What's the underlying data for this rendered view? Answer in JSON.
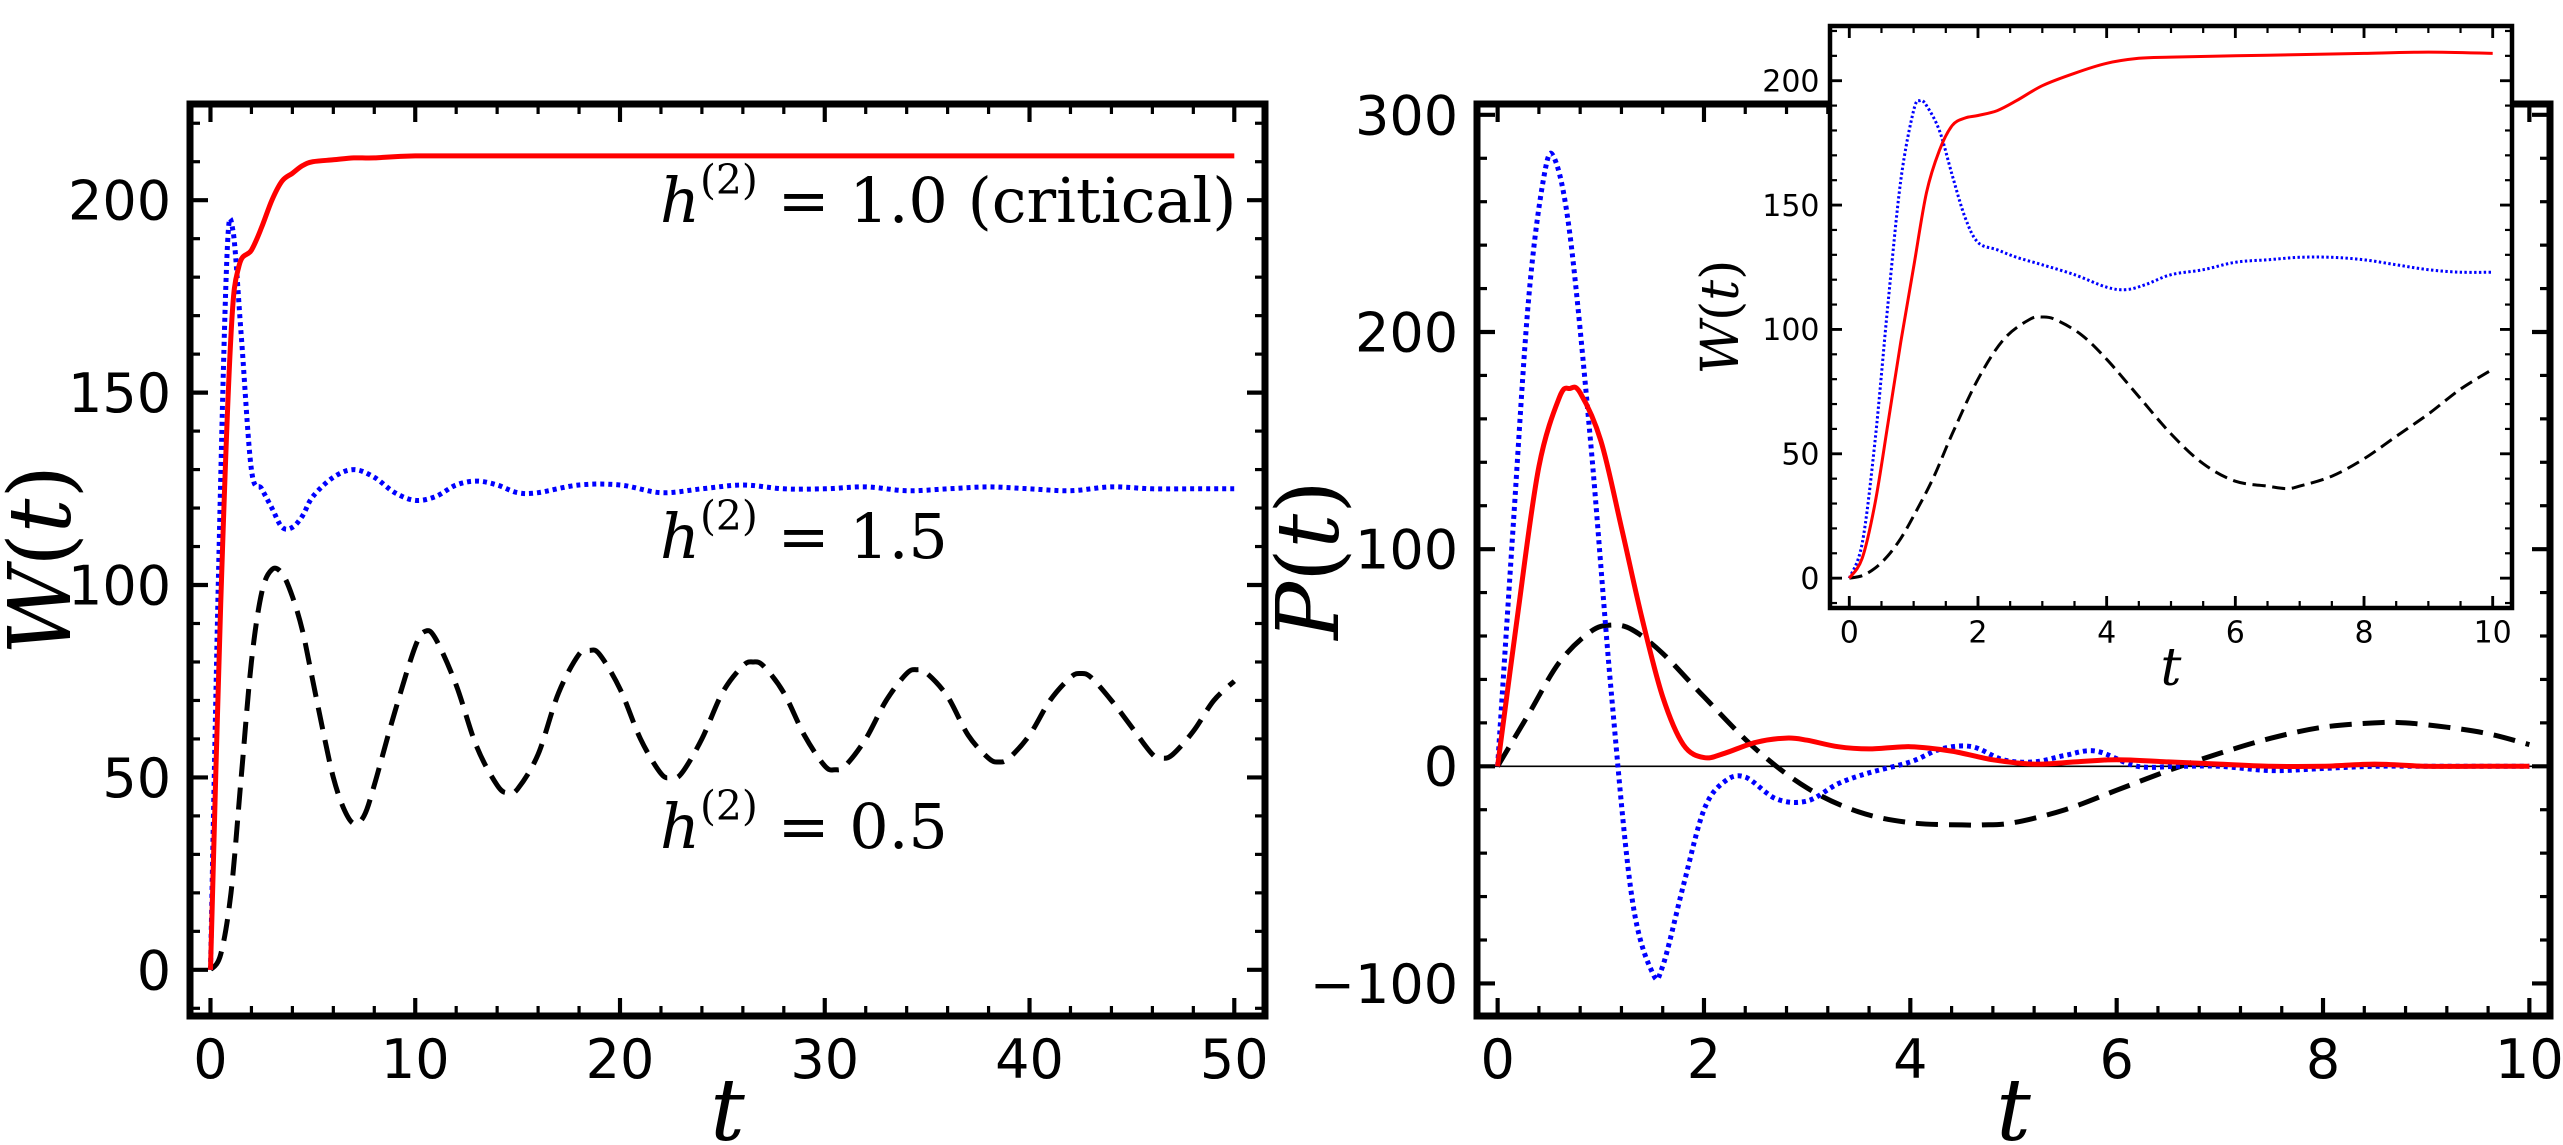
{
  "chart_data": [
    {
      "id": "left",
      "type": "line",
      "xlabel": "t",
      "ylabel": "W(t)",
      "xlim": [
        -1,
        51.5
      ],
      "ylim": [
        -12,
        225
      ],
      "xticks": [
        0,
        10,
        20,
        30,
        40,
        50
      ],
      "yticks": [
        0,
        50,
        100,
        150,
        200
      ],
      "annotations": [
        {
          "prefix": "h",
          "sup": "(2)",
          "text": " = 1.0 (critical)",
          "series": "h2=1.0"
        },
        {
          "prefix": "h",
          "sup": "(2)",
          "text": " = 1.5",
          "series": "h2=1.5"
        },
        {
          "prefix": "h",
          "sup": "(2)",
          "text": " = 0.5",
          "series": "h2=0.5"
        }
      ],
      "series": [
        {
          "key": "h2=1.0",
          "color": "#ff0000",
          "style": "solid",
          "x": [
            0,
            0.5,
            1,
            1.4,
            2,
            2.5,
            3,
            3.5,
            4,
            4.5,
            5,
            6,
            7,
            8,
            10,
            15,
            20,
            30,
            40,
            50
          ],
          "y": [
            0,
            95,
            165,
            183,
            187,
            193,
            200,
            205,
            207,
            209,
            210,
            210.5,
            211,
            211,
            211.5,
            211.5,
            211.5,
            211.5,
            211.5,
            211.5
          ]
        },
        {
          "key": "h2=1.5",
          "color": "#0000ff",
          "style": "dotted",
          "x": [
            0,
            0.4,
            0.8,
            1.1,
            1.5,
            2,
            2.5,
            3,
            3.5,
            4,
            4.5,
            5,
            6,
            7,
            8,
            9,
            10,
            11,
            12,
            13,
            14,
            15,
            16,
            18,
            20,
            22,
            24,
            26,
            28,
            30,
            32,
            34,
            36,
            38,
            40,
            42,
            44,
            46,
            48,
            50
          ],
          "y": [
            0,
            105,
            185,
            192,
            165,
            130,
            125,
            120,
            115,
            115,
            118,
            123,
            128,
            130,
            128,
            124,
            122,
            123,
            126,
            127,
            126,
            124,
            124,
            126,
            126,
            124,
            125,
            126,
            125,
            125,
            125.5,
            124.5,
            125,
            125.5,
            125,
            124.5,
            125.5,
            125,
            125,
            125
          ]
        },
        {
          "key": "h2=0.5",
          "color": "#000000",
          "style": "dashed",
          "x": [
            0,
            0.5,
            1,
            1.5,
            2,
            2.5,
            3,
            3.5,
            4,
            4.5,
            5,
            5.5,
            6,
            6.5,
            7,
            7.5,
            8,
            9,
            10,
            10.5,
            11,
            12,
            13,
            14,
            14.5,
            15,
            16,
            17,
            18,
            18.5,
            19,
            20,
            21,
            22,
            22.5,
            23,
            24,
            25,
            26,
            26.5,
            27,
            28,
            29,
            30,
            30.5,
            31,
            32,
            33,
            34,
            34.5,
            35,
            36,
            37,
            38,
            38.5,
            39,
            40,
            41,
            42,
            42.5,
            43,
            44,
            45,
            46,
            46.5,
            47,
            48,
            49,
            50
          ],
          "y": [
            0,
            4,
            20,
            50,
            80,
            98,
            104,
            103,
            97,
            88,
            75,
            62,
            50,
            42,
            38,
            40,
            48,
            67,
            84,
            88,
            86,
            74,
            58,
            48,
            46,
            47,
            56,
            72,
            82,
            83,
            82,
            73,
            60,
            51,
            50,
            51,
            60,
            72,
            79,
            80,
            79,
            72,
            61,
            53,
            52,
            53,
            60,
            70,
            77,
            78,
            77,
            71,
            61,
            55,
            54,
            55,
            61,
            70,
            76,
            77,
            76,
            70,
            63,
            56,
            55,
            56,
            62,
            70,
            75
          ]
        }
      ]
    },
    {
      "id": "right",
      "type": "line",
      "xlabel": "t",
      "ylabel": "P(t)",
      "xlim": [
        -0.2,
        10.2
      ],
      "ylim": [
        -115,
        305
      ],
      "xticks": [
        0,
        2,
        4,
        6,
        8,
        10
      ],
      "yticks": [
        -100,
        0,
        100,
        200,
        300
      ],
      "zero_line": true,
      "series": [
        {
          "key": "h2=1.0",
          "color": "#ff0000",
          "style": "solid",
          "x": [
            0,
            0.2,
            0.4,
            0.6,
            0.7,
            0.8,
            1.0,
            1.2,
            1.4,
            1.6,
            1.8,
            2.0,
            2.2,
            2.5,
            2.8,
            3.0,
            3.3,
            3.6,
            4.0,
            4.4,
            4.8,
            5.2,
            5.6,
            6.0,
            6.5,
            7.0,
            7.5,
            8.0,
            8.5,
            9.0,
            9.5,
            10.0
          ],
          "y": [
            0,
            72,
            138,
            170,
            174,
            172,
            150,
            110,
            68,
            32,
            10,
            4,
            6,
            11,
            13,
            12,
            9,
            8,
            9,
            7,
            3,
            1,
            2,
            3,
            2,
            1,
            0,
            0,
            1,
            0,
            0,
            0
          ]
        },
        {
          "key": "h2=1.5",
          "color": "#0000ff",
          "style": "dotted",
          "x": [
            0,
            0.15,
            0.3,
            0.45,
            0.55,
            0.7,
            0.9,
            1.1,
            1.3,
            1.5,
            1.6,
            1.8,
            2.0,
            2.2,
            2.4,
            2.7,
            3.0,
            3.3,
            3.6,
            4.0,
            4.3,
            4.6,
            4.9,
            5.2,
            5.5,
            5.8,
            6.2,
            6.6,
            7.0,
            7.5,
            8.0,
            8.5,
            9.0,
            9.5,
            10.0
          ],
          "y": [
            0,
            110,
            215,
            272,
            280,
            245,
            150,
            35,
            -60,
            -95,
            -92,
            -55,
            -20,
            -7,
            -5,
            -15,
            -16,
            -8,
            -3,
            2,
            8,
            9,
            3,
            2,
            5,
            7,
            0,
            0,
            0,
            -2,
            -1,
            0,
            0,
            0,
            0
          ]
        },
        {
          "key": "h2=0.5",
          "color": "#000000",
          "style": "dashed",
          "x": [
            0,
            0.3,
            0.6,
            0.9,
            1.1,
            1.3,
            1.6,
            2.0,
            2.5,
            3.0,
            3.5,
            4.0,
            4.5,
            4.7,
            5.0,
            5.5,
            6.0,
            6.5,
            7.0,
            7.5,
            8.0,
            8.5,
            8.8,
            9.2,
            9.6,
            10.0
          ],
          "y": [
            0,
            24,
            48,
            62,
            65,
            63,
            52,
            32,
            8,
            -10,
            -21,
            -26,
            -27,
            -27,
            -26,
            -20,
            -11,
            -2,
            6,
            13,
            18,
            20,
            20,
            18,
            15,
            10
          ]
        }
      ]
    },
    {
      "id": "inset",
      "type": "line",
      "xlabel": "t",
      "ylabel": "W(t)",
      "xlim": [
        -0.3,
        10.3
      ],
      "ylim": [
        -12,
        222
      ],
      "xticks": [
        0,
        2,
        4,
        6,
        8,
        10
      ],
      "yticks": [
        0,
        50,
        100,
        150,
        200
      ],
      "series": [
        {
          "key": "h2=1.0",
          "color": "#ff0000",
          "style": "solid",
          "x": [
            0,
            0.2,
            0.4,
            0.6,
            0.8,
            1.0,
            1.2,
            1.4,
            1.6,
            1.8,
            2.0,
            2.3,
            2.6,
            3.0,
            3.5,
            4.0,
            4.5,
            5.0,
            6.0,
            7.0,
            8.0,
            9.0,
            10.0
          ],
          "y": [
            0,
            8,
            30,
            62,
            95,
            125,
            155,
            172,
            182,
            185,
            186,
            188,
            192,
            198,
            203,
            207,
            209,
            209.5,
            210,
            210.5,
            211,
            211.5,
            211
          ]
        },
        {
          "key": "h2=1.5",
          "color": "#0000ff",
          "style": "dotted",
          "x": [
            0,
            0.2,
            0.4,
            0.6,
            0.8,
            1.0,
            1.1,
            1.2,
            1.4,
            1.6,
            1.8,
            2.0,
            2.3,
            2.6,
            3.0,
            3.5,
            4.0,
            4.3,
            4.6,
            5.0,
            5.5,
            6.0,
            6.5,
            7.0,
            7.5,
            8.0,
            8.5,
            9.0,
            9.5,
            10.0
          ],
          "y": [
            0,
            14,
            55,
            110,
            160,
            188,
            192,
            190,
            180,
            162,
            145,
            135,
            132,
            129,
            126,
            122,
            117,
            116,
            118,
            122,
            124,
            127,
            128,
            129,
            129,
            128,
            126,
            124,
            123,
            123
          ]
        },
        {
          "key": "h2=0.5",
          "color": "#000000",
          "style": "dashed",
          "x": [
            0,
            0.2,
            0.4,
            0.6,
            0.8,
            1.0,
            1.3,
            1.6,
            2.0,
            2.4,
            2.8,
            3.0,
            3.2,
            3.6,
            4.0,
            4.5,
            5.0,
            5.5,
            6.0,
            6.5,
            6.8,
            7.0,
            7.5,
            8.0,
            8.5,
            9.0,
            9.5,
            10.0
          ],
          "y": [
            0,
            1,
            4,
            9,
            16,
            25,
            40,
            58,
            80,
            96,
            104,
            105,
            104,
            98,
            88,
            73,
            58,
            46,
            39,
            37,
            36,
            37,
            41,
            48,
            57,
            66,
            76,
            84
          ]
        }
      ]
    }
  ]
}
